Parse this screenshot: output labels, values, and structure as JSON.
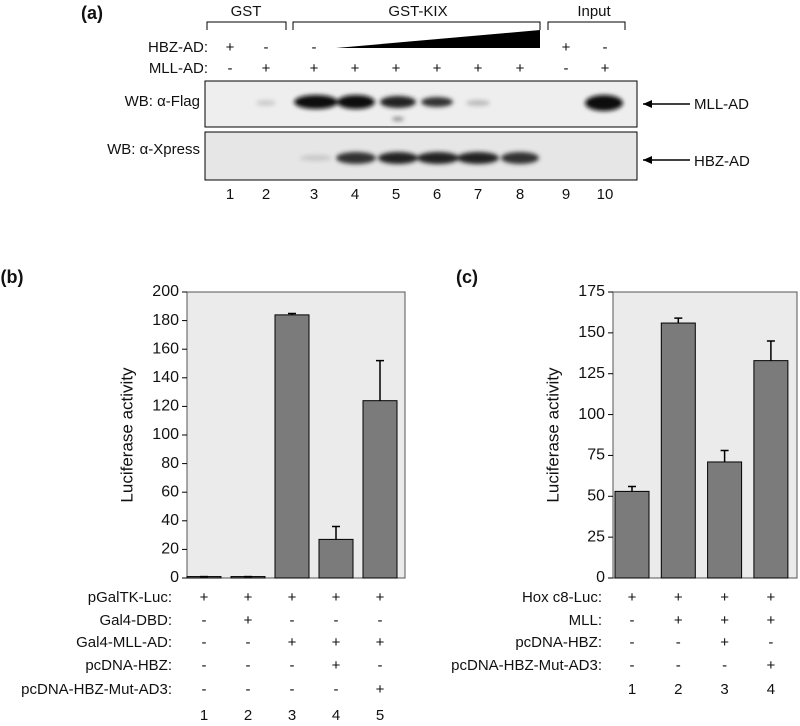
{
  "panel_a": {
    "label": "(a)",
    "groups": [
      "GST",
      "GST-KIX",
      "Input"
    ],
    "rows": [
      {
        "name": "HBZ-AD:",
        "signs": [
          "+",
          "-",
          "-",
          null,
          null,
          null,
          null,
          null,
          "+",
          "-"
        ]
      },
      {
        "name": "MLL-AD:",
        "signs": [
          "-",
          "+",
          "+",
          "+",
          "+",
          "+",
          "+",
          "+",
          "-",
          "+"
        ]
      }
    ],
    "blots": [
      {
        "name": "WB: α-Flag",
        "target": "MLL-AD"
      },
      {
        "name": "WB: α-Xpress",
        "target": "HBZ-AD"
      }
    ],
    "lanes": [
      "1",
      "2",
      "3",
      "4",
      "5",
      "6",
      "7",
      "8",
      "9",
      "10"
    ]
  },
  "chart_data": [
    {
      "type": "bar",
      "label": "(b)",
      "ylabel": "Luciferase activity",
      "categories": [
        "1",
        "2",
        "3",
        "4",
        "5"
      ],
      "values": [
        1,
        1,
        184,
        27,
        124
      ],
      "errors": [
        0,
        0,
        1,
        9,
        28
      ],
      "color": "#7b7b7b",
      "ylim": [
        0,
        200
      ],
      "yticks": [
        0,
        20,
        40,
        60,
        80,
        100,
        120,
        140,
        160,
        180,
        200
      ],
      "conditions": [
        {
          "name": "pGalTK-Luc:",
          "signs": [
            "+",
            "+",
            "+",
            "+",
            "+"
          ]
        },
        {
          "name": "Gal4-DBD:",
          "signs": [
            "-",
            "+",
            "-",
            "-",
            "-"
          ]
        },
        {
          "name": "Gal4-MLL-AD:",
          "signs": [
            "-",
            "-",
            "+",
            "+",
            "+"
          ]
        },
        {
          "name": "pcDNA-HBZ:",
          "signs": [
            "-",
            "-",
            "-",
            "+",
            "-"
          ]
        },
        {
          "name": "pcDNA-HBZ-Mut-AD3:",
          "signs": [
            "-",
            "-",
            "-",
            "-",
            "+"
          ]
        }
      ]
    },
    {
      "type": "bar",
      "label": "(c)",
      "ylabel": "Luciferase activity",
      "categories": [
        "1",
        "2",
        "3",
        "4"
      ],
      "values": [
        53,
        156,
        71,
        133
      ],
      "errors": [
        3,
        3,
        7,
        12
      ],
      "color": "#7b7b7b",
      "ylim": [
        0,
        175
      ],
      "yticks": [
        0,
        25,
        50,
        75,
        100,
        125,
        150,
        175
      ],
      "conditions": [
        {
          "name": "Hox c8-Luc:",
          "signs": [
            "+",
            "+",
            "+",
            "+"
          ]
        },
        {
          "name": "MLL:",
          "signs": [
            "-",
            "+",
            "+",
            "+"
          ]
        },
        {
          "name": "pcDNA-HBZ:",
          "signs": [
            "-",
            "-",
            "+",
            "-"
          ]
        },
        {
          "name": "pcDNA-HBZ-Mut-AD3:",
          "signs": [
            "-",
            "-",
            "-",
            "+"
          ]
        }
      ]
    }
  ]
}
